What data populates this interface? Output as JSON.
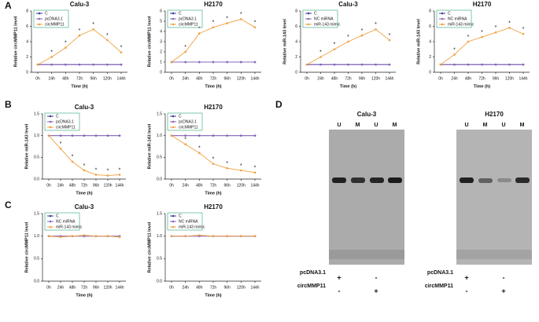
{
  "panels": [
    "A",
    "B",
    "C",
    "D"
  ],
  "chart_data": [
    {
      "type": "line",
      "title": "Calu-3",
      "xlabel": "Time (h)",
      "ylabel": "Relative circMMP11 level",
      "categories": [
        "0h",
        "24h",
        "48h",
        "72h",
        "96h",
        "120h",
        "144h"
      ],
      "ylim": [
        0,
        8
      ],
      "yticks": [
        0,
        2,
        4,
        6,
        8
      ],
      "legend": "upper left",
      "series": [
        {
          "name": "C",
          "color": "#3a3a9c",
          "values": [
            1,
            1,
            1,
            1,
            1,
            1,
            1
          ]
        },
        {
          "name": "pcDNA3.1",
          "color": "#8a66b8",
          "values": [
            1,
            1,
            1,
            1,
            1,
            1,
            1
          ]
        },
        {
          "name": "circMMP11",
          "color": "#f0a040",
          "values": [
            1,
            2,
            3.2,
            4.8,
            5.6,
            4.2,
            2.6
          ],
          "annotations": [
            null,
            "*",
            "*",
            "*",
            "*",
            "*",
            "*"
          ]
        }
      ]
    },
    {
      "type": "line",
      "title": "H2170",
      "xlabel": "Time (h)",
      "ylabel": "Relative circMMP11 level",
      "categories": [
        "0h",
        "24h",
        "48h",
        "72h",
        "96h",
        "120h",
        "144h"
      ],
      "ylim": [
        0,
        6
      ],
      "yticks": [
        0,
        1,
        2,
        3,
        4,
        5,
        6
      ],
      "legend": "upper left",
      "series": [
        {
          "name": "C",
          "color": "#3a3a9c",
          "values": [
            1,
            1,
            1,
            1,
            1,
            1,
            1
          ]
        },
        {
          "name": "pcDNA3.1",
          "color": "#8a66b8",
          "values": [
            1,
            1,
            1,
            1,
            1,
            1,
            1
          ]
        },
        {
          "name": "circMMP11",
          "color": "#f0a040",
          "values": [
            1,
            2,
            3.8,
            4.4,
            4.8,
            5.2,
            4.4
          ],
          "annotations": [
            null,
            "*",
            "*",
            "*",
            "*",
            "*",
            "*"
          ]
        }
      ]
    },
    {
      "type": "line",
      "title": "Calu-3",
      "xlabel": "Time (h)",
      "ylabel": "Relative miR-143 level",
      "categories": [
        "0h",
        "24h",
        "48h",
        "72h",
        "96h",
        "120h",
        "144h"
      ],
      "ylim": [
        0,
        8
      ],
      "yticks": [
        0,
        2,
        4,
        6,
        8
      ],
      "legend": "upper left",
      "series": [
        {
          "name": "C",
          "color": "#3a3a9c",
          "values": [
            1,
            1,
            1,
            1,
            1,
            1,
            1
          ]
        },
        {
          "name": "NC miRNA",
          "color": "#8a66b8",
          "values": [
            1,
            1,
            1,
            1,
            1,
            1,
            1
          ]
        },
        {
          "name": "miR-143 mimic",
          "color": "#f0a040",
          "values": [
            1,
            2,
            3,
            4,
            4.8,
            5.6,
            4.2
          ],
          "annotations": [
            null,
            "*",
            "*",
            "*",
            "*",
            "*",
            "*"
          ]
        }
      ]
    },
    {
      "type": "line",
      "title": "H2170",
      "xlabel": "Time (h)",
      "ylabel": "Relative miR-143 level",
      "categories": [
        "0h",
        "24h",
        "48h",
        "72h",
        "96h",
        "120h",
        "144h"
      ],
      "ylim": [
        0,
        8
      ],
      "yticks": [
        0,
        2,
        4,
        6,
        8
      ],
      "legend": "upper left",
      "series": [
        {
          "name": "C",
          "color": "#3a3a9c",
          "values": [
            1,
            1,
            1,
            1,
            1,
            1,
            1
          ]
        },
        {
          "name": "NC miRNA",
          "color": "#8a66b8",
          "values": [
            1,
            1,
            1,
            1,
            1,
            1,
            1
          ]
        },
        {
          "name": "miR-143 mimic",
          "color": "#f0a040",
          "values": [
            1,
            2.3,
            4,
            4.6,
            5.2,
            5.8,
            5
          ],
          "annotations": [
            null,
            "*",
            "*",
            "*",
            "*",
            "*",
            "*"
          ]
        }
      ]
    },
    {
      "type": "line",
      "title": "Calu-3",
      "xlabel": "Time (h)",
      "ylabel": "Relative miR-143 level",
      "categories": [
        "0h",
        "24h",
        "48h",
        "72h",
        "96h",
        "120h",
        "144h"
      ],
      "ylim": [
        0,
        1.5
      ],
      "yticks": [
        {
          "value": 0,
          "label": "0.0"
        },
        {
          "value": 0.5,
          "label": "0.5"
        },
        {
          "value": 1,
          "label": "1.0"
        },
        {
          "value": 1.5,
          "label": "1.5"
        }
      ],
      "legend": "upper left",
      "series": [
        {
          "name": "C",
          "color": "#3a3a9c",
          "values": [
            1,
            1,
            1,
            1,
            1,
            1,
            1
          ]
        },
        {
          "name": "pcDNA3.1",
          "color": "#8a66b8",
          "values": [
            1,
            1,
            1,
            1,
            1,
            1,
            1
          ]
        },
        {
          "name": "circMMP11",
          "color": "#f0a040",
          "values": [
            1,
            0.7,
            0.4,
            0.2,
            0.1,
            0.08,
            0.1
          ],
          "annotations": [
            null,
            "*",
            "*",
            "*",
            "*",
            "*",
            "*"
          ]
        }
      ]
    },
    {
      "type": "line",
      "title": "H2170",
      "xlabel": "Time (h)",
      "ylabel": "Relative miR-143 level",
      "categories": [
        "0h",
        "24h",
        "48h",
        "72h",
        "96h",
        "120h",
        "144h"
      ],
      "ylim": [
        0,
        1.5
      ],
      "yticks": [
        {
          "value": 0,
          "label": "0.0"
        },
        {
          "value": 0.5,
          "label": "0.5"
        },
        {
          "value": 1,
          "label": "1.0"
        },
        {
          "value": 1.5,
          "label": "1.5"
        }
      ],
      "legend": "upper left",
      "series": [
        {
          "name": "C",
          "color": "#3a3a9c",
          "values": [
            1,
            1,
            1,
            1,
            1,
            1,
            1
          ]
        },
        {
          "name": "pcDNA3.1",
          "color": "#8a66b8",
          "values": [
            1,
            1,
            1,
            1,
            1,
            1,
            1
          ]
        },
        {
          "name": "circMMP11",
          "color": "#f0a040",
          "values": [
            1,
            0.8,
            0.6,
            0.35,
            0.25,
            0.2,
            0.15
          ],
          "annotations": [
            null,
            "*",
            "*",
            "*",
            "*",
            "*",
            "*"
          ]
        }
      ]
    },
    {
      "type": "line",
      "title": "Calu-3",
      "xlabel": "Time (h)",
      "ylabel": "Relative circMMP11 level",
      "categories": [
        "0h",
        "24h",
        "48h",
        "72h",
        "96h",
        "120h",
        "144h"
      ],
      "ylim": [
        0,
        1.5
      ],
      "yticks": [
        {
          "value": 0,
          "label": "0.0"
        },
        {
          "value": 0.5,
          "label": "0.5"
        },
        {
          "value": 1,
          "label": "1.0"
        },
        {
          "value": 1.5,
          "label": "1.5"
        }
      ],
      "legend": "upper left",
      "series": [
        {
          "name": "C",
          "color": "#3a3a9c",
          "values": [
            1,
            1,
            1,
            1,
            1,
            1,
            1
          ]
        },
        {
          "name": "NC miRNA",
          "color": "#8a66b8",
          "values": [
            1,
            1,
            1,
            1,
            1,
            1,
            1
          ]
        },
        {
          "name": "miR-143 mimic",
          "color": "#f0a040",
          "values": [
            1,
            0.98,
            1,
            1.02,
            1,
            1,
            0.98
          ]
        }
      ]
    },
    {
      "type": "line",
      "title": "H2170",
      "xlabel": "Time (h)",
      "ylabel": "Relative circMMP11 level",
      "categories": [
        "0h",
        "24h",
        "48h",
        "72h",
        "96h",
        "120h",
        "144h"
      ],
      "ylim": [
        0,
        1.5
      ],
      "yticks": [
        {
          "value": 0,
          "label": "0.0"
        },
        {
          "value": 0.5,
          "label": "0.5"
        },
        {
          "value": 1,
          "label": "1.0"
        },
        {
          "value": 1.5,
          "label": "1.5"
        }
      ],
      "legend": "upper left",
      "series": [
        {
          "name": "C",
          "color": "#3a3a9c",
          "values": [
            1,
            1,
            1,
            1,
            1,
            1,
            1
          ]
        },
        {
          "name": "NC miRNA",
          "color": "#8a66b8",
          "values": [
            1,
            1,
            1,
            1,
            1,
            1,
            1
          ]
        },
        {
          "name": "miR-143 mimic",
          "color": "#f0a040",
          "values": [
            1,
            1,
            1.02,
            1,
            1,
            1,
            1
          ]
        }
      ]
    }
  ],
  "gel": {
    "panels": [
      {
        "title": "Calu-3",
        "lanes": [
          "U",
          "M",
          "U",
          "M"
        ]
      },
      {
        "title": "H2170",
        "lanes": [
          "U",
          "M",
          "U",
          "M"
        ]
      }
    ],
    "rows": [
      {
        "label": "pcDNA3.1",
        "signs": [
          "+",
          "-"
        ]
      },
      {
        "label": "circMMP11",
        "signs": [
          "-",
          "+"
        ]
      }
    ]
  }
}
